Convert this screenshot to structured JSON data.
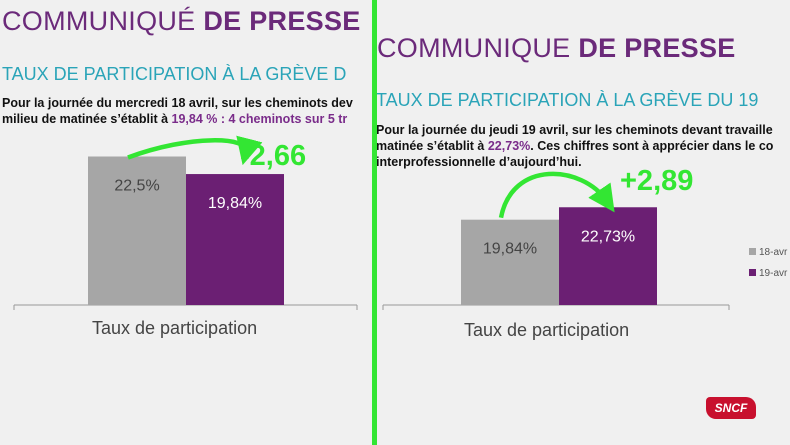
{
  "left": {
    "title_light": "COMMUNIQUÉ",
    "title_bold": "DE PRESSE",
    "subtitle": "TAUX DE PARTICIPATION À LA GRÈVE D",
    "para_line1": "Pour la journée du mercredi 18 avril, sur les cheminots dev",
    "para_line2_prefix": "milieu de matinée s’établit à ",
    "para_line2_hl": "19,84 % : 4 cheminots sur 5 tr",
    "delta_label": "-2,66"
  },
  "right": {
    "title_light": "COMMUNIQUE",
    "title_bold": "DE PRESSE",
    "subtitle": "TAUX DE PARTICIPATION À LA GRÈVE DU 19",
    "para_line1": "Pour la journée du jeudi 19 avril, sur les cheminots devant travaille",
    "para_line2_prefix": "matinée s’établit à ",
    "para_line2_hl": "22,73%",
    "para_line2_suffix": ". Ces chiffres sont à apprécier dans le co",
    "para_line3": "interprofessionnelle d’aujourd’hui.",
    "delta_label": "+2,89",
    "legend": [
      {
        "label": "18-avr",
        "color": "#a6a6a6"
      },
      {
        "label": "19-avr",
        "color": "#6b1f73"
      }
    ],
    "logo_text": "SNCF"
  },
  "colors": {
    "gray_bar": "#a6a6a6",
    "purple_bar": "#6b1f73",
    "arrow_green": "#33e633",
    "title_purple": "#6b2a7a",
    "subtitle_teal": "#2aa4b8"
  },
  "chart_data": [
    {
      "type": "bar",
      "categories": [
        "Taux de participation"
      ],
      "series": [
        {
          "name": "",
          "values": [
            22.5
          ],
          "label": "22,5%"
        },
        {
          "name": "",
          "values": [
            19.84
          ],
          "label": "19,84%"
        }
      ],
      "xlabel": "Taux de participation",
      "annotation": "-2,66"
    },
    {
      "type": "bar",
      "categories": [
        "Taux de participation"
      ],
      "series": [
        {
          "name": "18-avr",
          "values": [
            19.84
          ],
          "label": "19,84%"
        },
        {
          "name": "19-avr",
          "values": [
            22.73
          ],
          "label": "22,73%"
        }
      ],
      "xlabel": "Taux de participation",
      "annotation": "+2,89"
    }
  ]
}
